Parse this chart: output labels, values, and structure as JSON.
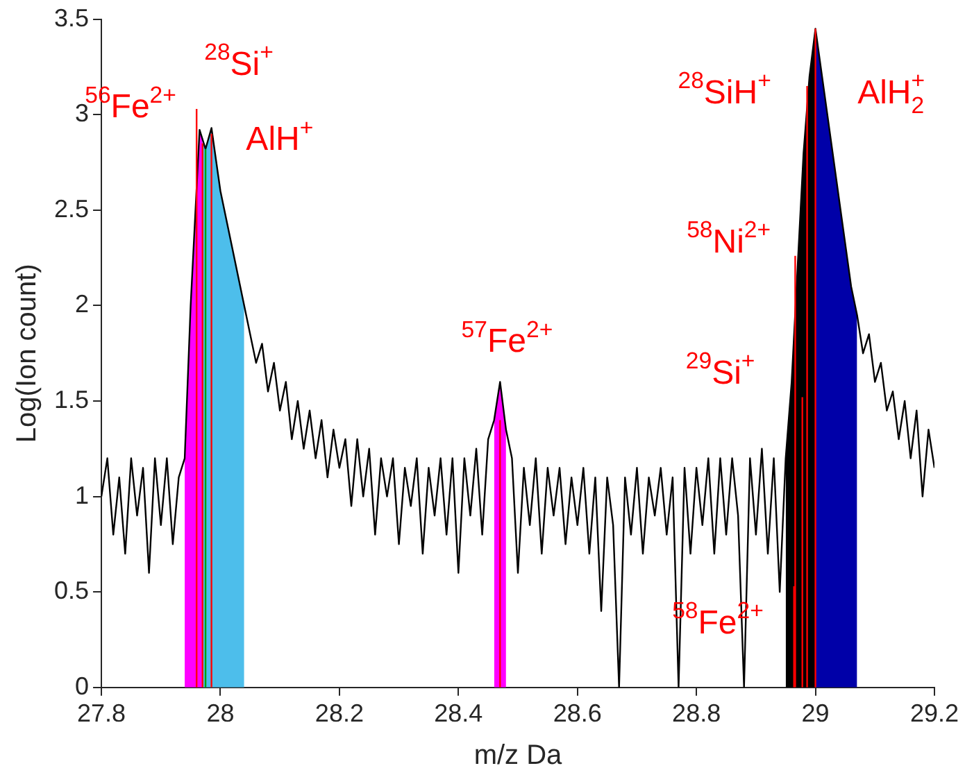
{
  "chart_data": {
    "type": "line",
    "xlabel": "m/z Da",
    "ylabel": "Log(Ion count)",
    "xlim": [
      27.8,
      29.2
    ],
    "xticks": [
      27.8,
      28,
      28.2,
      28.4,
      28.6,
      28.8,
      29,
      29.2
    ],
    "ylim": [
      0,
      3.5
    ],
    "yticks": [
      0,
      0.5,
      1,
      1.5,
      2,
      2.5,
      3,
      3.5
    ],
    "grid": false,
    "legend": false,
    "marker": "none",
    "line_style": "solid",
    "series": [
      {
        "type": "area",
        "color": "#ff00ff",
        "x": [
          27.94,
          27.95,
          27.965,
          27.97
        ],
        "values": [
          1.2,
          2.0,
          2.92,
          2.88
        ]
      },
      {
        "type": "area",
        "color": "#4dbeeb",
        "x": [
          27.97,
          27.975,
          27.985,
          28.0,
          28.02,
          28.04
        ],
        "values": [
          2.88,
          2.82,
          2.93,
          2.6,
          2.3,
          2.0
        ]
      },
      {
        "type": "area",
        "color": "#ff00ff",
        "x": [
          28.46,
          28.47,
          28.48
        ],
        "values": [
          1.4,
          1.6,
          1.35
        ]
      },
      {
        "type": "area",
        "color": "#000000",
        "x": [
          28.95,
          28.96,
          28.97,
          28.98,
          28.99,
          29.0
        ],
        "values": [
          1.2,
          1.6,
          2.2,
          2.8,
          3.2,
          3.45
        ]
      },
      {
        "type": "area",
        "color": "#0000a8",
        "x": [
          29.0,
          29.02,
          29.04,
          29.06,
          29.07
        ],
        "values": [
          3.45,
          3.0,
          2.55,
          2.1,
          1.95
        ]
      },
      {
        "type": "line",
        "color": "#000000",
        "x": [
          27.8,
          27.81,
          27.82,
          27.83,
          27.84,
          27.85,
          27.86,
          27.87,
          27.88,
          27.89,
          27.9,
          27.91,
          27.92,
          27.93,
          27.94,
          27.95,
          27.965,
          27.975,
          27.985,
          28.0,
          28.02,
          28.04,
          28.05,
          28.06,
          28.07,
          28.08,
          28.09,
          28.1,
          28.11,
          28.12,
          28.13,
          28.14,
          28.15,
          28.16,
          28.17,
          28.18,
          28.19,
          28.2,
          28.21,
          28.22,
          28.23,
          28.24,
          28.25,
          28.26,
          28.27,
          28.28,
          28.29,
          28.3,
          28.31,
          28.32,
          28.33,
          28.34,
          28.35,
          28.36,
          28.37,
          28.38,
          28.39,
          28.4,
          28.41,
          28.42,
          28.43,
          28.44,
          28.45,
          28.46,
          28.47,
          28.48,
          28.49,
          28.5,
          28.51,
          28.52,
          28.53,
          28.54,
          28.55,
          28.56,
          28.57,
          28.58,
          28.59,
          28.6,
          28.61,
          28.62,
          28.63,
          28.64,
          28.65,
          28.66,
          28.67,
          28.68,
          28.69,
          28.7,
          28.71,
          28.72,
          28.73,
          28.74,
          28.75,
          28.76,
          28.77,
          28.78,
          28.79,
          28.8,
          28.81,
          28.82,
          28.83,
          28.84,
          28.85,
          28.86,
          28.87,
          28.88,
          28.89,
          28.9,
          28.91,
          28.92,
          28.93,
          28.94,
          28.95,
          28.96,
          28.97,
          28.98,
          28.99,
          29.0,
          29.02,
          29.04,
          29.06,
          29.07,
          29.08,
          29.09,
          29.1,
          29.11,
          29.12,
          29.13,
          29.14,
          29.15,
          29.16,
          29.17,
          29.18,
          29.19,
          29.2
        ],
        "values": [
          1.0,
          1.2,
          0.8,
          1.1,
          0.7,
          1.2,
          0.9,
          1.15,
          0.6,
          1.2,
          0.85,
          1.2,
          0.75,
          1.1,
          1.2,
          2.0,
          2.92,
          2.82,
          2.93,
          2.6,
          2.3,
          2.0,
          1.85,
          1.7,
          1.8,
          1.55,
          1.7,
          1.45,
          1.6,
          1.3,
          1.5,
          1.25,
          1.45,
          1.2,
          1.4,
          1.1,
          1.35,
          1.15,
          1.3,
          0.95,
          1.3,
          1.0,
          1.25,
          0.8,
          1.2,
          1.0,
          1.2,
          0.75,
          1.15,
          0.95,
          1.2,
          0.7,
          1.15,
          0.9,
          1.2,
          0.8,
          1.2,
          0.6,
          1.2,
          0.9,
          1.25,
          0.8,
          1.3,
          1.4,
          1.6,
          1.35,
          1.2,
          0.6,
          1.15,
          0.85,
          1.2,
          0.7,
          1.15,
          0.9,
          1.15,
          0.75,
          1.1,
          0.85,
          1.15,
          0.7,
          1.1,
          0.4,
          1.1,
          0.85,
          0.0,
          1.1,
          0.8,
          1.15,
          0.7,
          1.1,
          0.9,
          1.15,
          0.8,
          1.1,
          0.0,
          1.15,
          0.7,
          1.15,
          0.85,
          1.2,
          0.7,
          1.2,
          0.8,
          1.2,
          0.9,
          0.0,
          1.2,
          0.8,
          1.25,
          0.7,
          1.2,
          0.5,
          1.2,
          1.6,
          2.2,
          2.8,
          3.2,
          3.45,
          3.0,
          2.55,
          2.1,
          1.95,
          1.75,
          1.85,
          1.6,
          1.7,
          1.45,
          1.55,
          1.3,
          1.5,
          1.2,
          1.45,
          1.0,
          1.35,
          1.15
        ]
      },
      {
        "type": "line",
        "color": "#ff0000",
        "x": [
          27.96,
          27.96
        ],
        "values": [
          0,
          3.03
        ]
      },
      {
        "type": "line",
        "color": "#00a000",
        "x": [
          27.975,
          27.975
        ],
        "values": [
          0,
          2.82
        ]
      },
      {
        "type": "line",
        "color": "#ff0000",
        "x": [
          27.97,
          27.97
        ],
        "values": [
          0,
          2.85
        ]
      },
      {
        "type": "line",
        "color": "#ff0000",
        "x": [
          27.985,
          27.985
        ],
        "values": [
          0,
          2.9
        ]
      },
      {
        "type": "line",
        "color": "#ff0000",
        "x": [
          28.47,
          28.47
        ],
        "values": [
          0,
          1.4
        ]
      },
      {
        "type": "line",
        "color": "#ff0000",
        "x": [
          28.964,
          28.964
        ],
        "values": [
          0,
          0.53
        ]
      },
      {
        "type": "line",
        "color": "#ff0000",
        "x": [
          28.966,
          28.966
        ],
        "values": [
          0,
          2.26
        ]
      },
      {
        "type": "line",
        "color": "#ff0000",
        "x": [
          28.978,
          28.978
        ],
        "values": [
          0,
          1.52
        ]
      },
      {
        "type": "line",
        "color": "#ff0000",
        "x": [
          28.986,
          28.986
        ],
        "values": [
          0,
          3.15
        ]
      },
      {
        "type": "line",
        "color": "#ff0000",
        "x": [
          29.0,
          29.0
        ],
        "values": [
          0,
          3.45
        ]
      }
    ],
    "annotations": [
      "$^{56}$Fe$^{2+}$",
      "$^{28}$Si$^{+}$",
      "AlH$^{+}$",
      "$^{57}$Fe$^{2+}$",
      "$^{28}$SiH$^{+}$",
      "AlH$^{+}$$_{2}$",
      "$^{58}$Ni$^{2+}$",
      "$^{29}$Si$^{+}$",
      "$^{58}$Fe$^{2+}$"
    ]
  }
}
